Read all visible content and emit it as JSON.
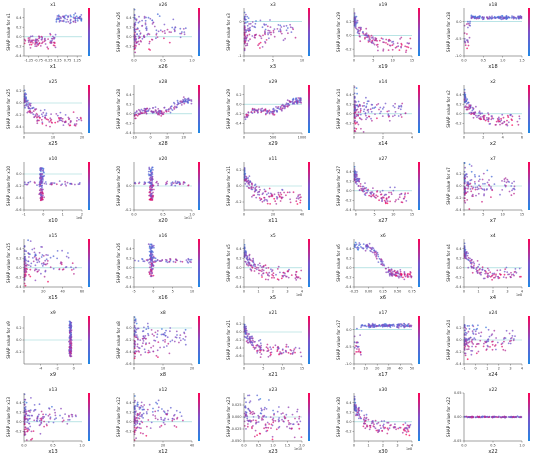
{
  "figure": {
    "rows": 6,
    "cols": 5,
    "ylabel_prefix": "SHAP value for",
    "colors": {
      "low": "#1e88e5",
      "mid": "#7c52c8",
      "high": "#ff0052",
      "baseline": "#8fd3d6",
      "axis": "#444444"
    }
  },
  "chart_data": [
    {
      "type": "scatter",
      "title": "x1",
      "xlabel": "x1",
      "ylabel": "SHAP value for x1",
      "xlim": [
        -1.5,
        1.5
      ],
      "ylim": [
        -0.4,
        0.6
      ],
      "xticks": [
        "-1.25",
        "-0.75",
        "-0.25",
        "0.25",
        "0.75",
        "1.25"
      ],
      "yticks": [
        "-0.4",
        "-0.2",
        "0.0",
        "0.2",
        "0.4"
      ],
      "pattern": "step"
    },
    {
      "type": "scatter",
      "title": "x26",
      "xlabel": "x26",
      "ylabel": "SHAP value for x26",
      "xlim": [
        0,
        1
      ],
      "ylim": [
        -0.4,
        0.6
      ],
      "xticks": [
        "0.0",
        "0.5",
        "1.0"
      ],
      "yticks": [
        "-0.2",
        "0.0",
        "0.2",
        "0.4"
      ],
      "pattern": "leftcluster"
    },
    {
      "type": "scatter",
      "title": "x3",
      "xlabel": "x3",
      "ylabel": "SHAP value for x3",
      "xlim": [
        0,
        10
      ],
      "ylim": [
        -1,
        0.4
      ],
      "xticks": [
        "0",
        "5",
        "10"
      ],
      "yticks": [
        "-1",
        "0"
      ],
      "pattern": "leftcluster"
    },
    {
      "type": "scatter",
      "title": "x19",
      "xlabel": "x19",
      "ylabel": "SHAP value for x19",
      "xlim": [
        0,
        15
      ],
      "ylim": [
        -0.3,
        0.4
      ],
      "xticks": [
        "0",
        "5",
        "10",
        "15"
      ],
      "yticks": [
        "-0.2",
        "0.0",
        "0.2"
      ],
      "pattern": "decay"
    },
    {
      "type": "scatter",
      "title": "x18",
      "xlabel": "x18",
      "ylabel": "SHAP value for x18",
      "xlim": [
        0,
        1.5
      ],
      "ylim": [
        -1,
        0.4
      ],
      "xticks": [
        "0.0",
        "0.5",
        "1.0",
        "1.5"
      ],
      "yticks": [
        "-1.0",
        "-0.5",
        "0.0"
      ],
      "pattern": "rise"
    },
    {
      "type": "scatter",
      "title": "x25",
      "xlabel": "x25",
      "ylabel": "SHAP value for x25",
      "xlim": [
        0,
        20
      ],
      "ylim": [
        -0.5,
        0.3
      ],
      "xticks": [
        "0",
        "10",
        "20"
      ],
      "yticks": [
        "-0.4",
        "-0.2",
        "0.0",
        "0.2"
      ],
      "pattern": "decay"
    },
    {
      "type": "scatter",
      "title": "x28",
      "xlabel": "x28",
      "ylabel": "SHAP value for x28",
      "xlim": [
        -10,
        25
      ],
      "ylim": [
        -0.4,
        0.6
      ],
      "xticks": [
        "-10",
        "0",
        "10",
        "20"
      ],
      "yticks": [
        "-0.4",
        "-0.2",
        "0.0",
        "0.2",
        "0.4"
      ],
      "pattern": "band"
    },
    {
      "type": "scatter",
      "title": "x29",
      "xlabel": "x29",
      "ylabel": "SHAP value for x29",
      "xlim": [
        0,
        1000
      ],
      "ylim": [
        -0.6,
        0.4
      ],
      "xticks": [
        "0",
        "500",
        "1000"
      ],
      "yticks": [
        "-0.4",
        "-0.2",
        "0.0",
        "0.2"
      ],
      "pattern": "band"
    },
    {
      "type": "scatter",
      "title": "x14",
      "xlabel": "x14",
      "ylabel": "SHAP value for x14",
      "xlim": [
        0,
        4
      ],
      "ylim": [
        -0.4,
        0.6
      ],
      "xticks": [
        "0",
        "2",
        "4"
      ],
      "yticks": [
        "-0.2",
        "0.0",
        "0.2",
        "0.4"
      ],
      "pattern": "leftcluster"
    },
    {
      "type": "scatter",
      "title": "x2",
      "xlabel": "x2",
      "ylabel": "SHAP value for x2",
      "xlim": [
        0,
        6
      ],
      "ylim": [
        -0.4,
        0.6
      ],
      "xticks": [
        "0",
        "2",
        "4",
        "6"
      ],
      "yticks": [
        "-0.2",
        "0.0",
        "0.2",
        "0.4"
      ],
      "pattern": "decay"
    },
    {
      "type": "scatter",
      "title": "x10",
      "xlabel": "x10",
      "ylabel": "SHAP value for x10",
      "xlim": [
        -1,
        2
      ],
      "ylim": [
        -0.6,
        0.2
      ],
      "xticks": [
        "-1",
        "0",
        "1",
        "2"
      ],
      "yticks": [
        "-0.6",
        "-0.4",
        "-0.2",
        "0.0"
      ],
      "pattern": "spike",
      "scale_label": "1e8"
    },
    {
      "type": "scatter",
      "title": "x20",
      "xlabel": "x20",
      "ylabel": "SHAP value for x20",
      "xlim": [
        0,
        1
      ],
      "ylim": [
        -0.2,
        0.2
      ],
      "xticks": [
        "0.0",
        "0.5",
        "1.0"
      ],
      "yticks": [
        "-0.2",
        "0.0"
      ],
      "pattern": "spike",
      "scale_label": "1e11"
    },
    {
      "type": "scatter",
      "title": "x11",
      "xlabel": "x11",
      "ylabel": "SHAP value for x11",
      "xlim": [
        0,
        40
      ],
      "ylim": [
        -0.3,
        0.3
      ],
      "xticks": [
        "0",
        "20",
        "40"
      ],
      "yticks": [
        "-0.2",
        "0.0",
        "0.2"
      ],
      "pattern": "decay"
    },
    {
      "type": "scatter",
      "title": "x27",
      "xlabel": "x27",
      "ylabel": "SHAP value for x27",
      "xlim": [
        -0.5,
        15
      ],
      "ylim": [
        -0.4,
        0.6
      ],
      "xticks": [
        "0",
        "5",
        "10",
        "15"
      ],
      "yticks": [
        "-0.4",
        "-0.2",
        "0.0",
        "0.2",
        "0.4"
      ],
      "pattern": "decay"
    },
    {
      "type": "scatter",
      "title": "x7",
      "xlabel": "x7",
      "ylabel": "SHAP value for x7",
      "xlim": [
        0,
        15
      ],
      "ylim": [
        -0.4,
        0.4
      ],
      "xticks": [
        "0",
        "5",
        "10",
        "15"
      ],
      "yticks": [
        "-0.4",
        "-0.2",
        "0.0",
        "0.2"
      ],
      "pattern": "leftcluster"
    },
    {
      "type": "scatter",
      "title": "x15",
      "xlabel": "x15",
      "ylabel": "SHAP value for x15",
      "xlim": [
        0,
        60
      ],
      "ylim": [
        -0.4,
        0.6
      ],
      "xticks": [
        "0",
        "20",
        "40",
        "60"
      ],
      "yticks": [
        "-0.4",
        "-0.2",
        "0.0",
        "0.2",
        "0.4"
      ],
      "pattern": "leftcluster"
    },
    {
      "type": "scatter",
      "title": "x16",
      "xlabel": "x16",
      "ylabel": "SHAP value for x16",
      "xlim": [
        -5,
        10
      ],
      "ylim": [
        -0.4,
        0.6
      ],
      "xticks": [
        "-5",
        "0",
        "5",
        "10"
      ],
      "yticks": [
        "-0.4",
        "-0.2",
        "0.0",
        "0.2",
        "0.4"
      ],
      "pattern": "spike"
    },
    {
      "type": "scatter",
      "title": "x5",
      "xlabel": "x5",
      "ylabel": "SHAP value for x5",
      "xlim": [
        0,
        4
      ],
      "ylim": [
        -0.4,
        0.6
      ],
      "xticks": [
        "0",
        "1",
        "2",
        "3",
        "4"
      ],
      "yticks": [
        "-0.4",
        "-0.2",
        "0.0",
        "0.2",
        "0.4"
      ],
      "pattern": "decay",
      "scale_label": "1e8"
    },
    {
      "type": "scatter",
      "title": "x6",
      "xlabel": "x6",
      "ylabel": "SHAP value for x6",
      "xlim": [
        -0.25,
        0.75
      ],
      "ylim": [
        -0.4,
        0.6
      ],
      "xticks": [
        "-0.25",
        "0.00",
        "0.25",
        "0.50",
        "0.75"
      ],
      "yticks": [
        "-0.4",
        "-0.2",
        "0.0",
        "0.2",
        "0.4"
      ],
      "pattern": "sigmoid"
    },
    {
      "type": "scatter",
      "title": "x4",
      "xlabel": "x4",
      "ylabel": "SHAP value for x4",
      "xlim": [
        0,
        4
      ],
      "ylim": [
        -0.4,
        0.6
      ],
      "xticks": [
        "0",
        "1",
        "2",
        "3",
        "4"
      ],
      "yticks": [
        "-0.4",
        "-0.2",
        "0.0",
        "0.2",
        "0.4"
      ],
      "pattern": "decay",
      "scale_label": "1e8"
    },
    {
      "type": "scatter",
      "title": "x9",
      "xlabel": "x9",
      "ylabel": "SHAP value for x9",
      "xlim": [
        -6,
        1
      ],
      "ylim": [
        -0.4,
        0.4
      ],
      "xticks": [
        "-4",
        "-2",
        "0"
      ],
      "yticks": [
        "-0.2",
        "0.0",
        "0.2"
      ],
      "pattern": "rightspike"
    },
    {
      "type": "scatter",
      "title": "x8",
      "xlabel": "x8",
      "ylabel": "SHAP value for x8",
      "xlim": [
        0,
        20
      ],
      "ylim": [
        -0.6,
        0.2
      ],
      "xticks": [
        "0",
        "10",
        "20"
      ],
      "yticks": [
        "-0.6",
        "-0.4",
        "-0.2",
        "0.0"
      ],
      "pattern": "leftcluster"
    },
    {
      "type": "scatter",
      "title": "x21",
      "xlabel": "x21",
      "ylabel": "SHAP value for x21",
      "xlim": [
        0,
        15
      ],
      "ylim": [
        -0.8,
        0.4
      ],
      "xticks": [
        "0",
        "5",
        "10",
        "15"
      ],
      "yticks": [
        "-0.6",
        "-0.4",
        "-0.2",
        "0.0",
        "0.2"
      ],
      "pattern": "decay"
    },
    {
      "type": "scatter",
      "title": "x17",
      "xlabel": "x17",
      "ylabel": "SHAP value for x17",
      "xlim": [
        0,
        50
      ],
      "ylim": [
        -1,
        0.4
      ],
      "xticks": [
        "0",
        "10",
        "20",
        "30",
        "40",
        "50"
      ],
      "yticks": [
        "-1.0",
        "-0.5",
        "0.0"
      ],
      "pattern": "rise"
    },
    {
      "type": "scatter",
      "title": "x24",
      "xlabel": "x24",
      "ylabel": "SHAP value for x24",
      "xlim": [
        -1,
        4
      ],
      "ylim": [
        -0.4,
        0.4
      ],
      "xticks": [
        "-1",
        "0",
        "1",
        "2",
        "3",
        "4"
      ],
      "yticks": [
        "-0.4",
        "-0.2",
        "0.0",
        "0.2"
      ],
      "pattern": "leftcluster"
    },
    {
      "type": "scatter",
      "title": "x13",
      "xlabel": "x13",
      "ylabel": "SHAP value for x13",
      "xlim": [
        0,
        1
      ],
      "ylim": [
        -0.4,
        0.6
      ],
      "xticks": [
        "0.0",
        "0.5",
        "1.0"
      ],
      "yticks": [
        "-0.2",
        "0.0",
        "0.2",
        "0.4"
      ],
      "pattern": "leftcluster"
    },
    {
      "type": "scatter",
      "title": "x12",
      "xlabel": "x12",
      "ylabel": "SHAP value for x12",
      "xlim": [
        0,
        40
      ],
      "ylim": [
        -0.4,
        0.6
      ],
      "xticks": [
        "0",
        "20",
        "40"
      ],
      "yticks": [
        "-0.2",
        "0.0",
        "0.2",
        "0.4"
      ],
      "pattern": "leftcluster"
    },
    {
      "type": "scatter",
      "title": "x23",
      "xlabel": "x23",
      "ylabel": "SHAP value for x23",
      "xlim": [
        0,
        2
      ],
      "ylim": [
        -0.05,
        0.05
      ],
      "xticks": [
        "0.0",
        "0.5",
        "1.0",
        "1.5",
        "2.0"
      ],
      "yticks": [
        "-0.050",
        "-0.025",
        "0.000",
        "0.025"
      ],
      "pattern": "cloud",
      "scale_label": "1e10"
    },
    {
      "type": "scatter",
      "title": "x30",
      "xlabel": "x30",
      "ylabel": "SHAP value for x30",
      "xlim": [
        0,
        4
      ],
      "ylim": [
        -0.4,
        0.6
      ],
      "xticks": [
        "0",
        "1",
        "2",
        "3",
        "4"
      ],
      "yticks": [
        "-0.2",
        "0.0",
        "0.2",
        "0.4"
      ],
      "pattern": "decay",
      "scale_label": "1e8"
    },
    {
      "type": "scatter",
      "title": "x22",
      "xlabel": "x22",
      "ylabel": "SHAP value for x22",
      "xlim": [
        0,
        1
      ],
      "ylim": [
        -0.05,
        0.05
      ],
      "xticks": [
        "0.0",
        "0.5",
        "1.0"
      ],
      "yticks": [
        "-0.05",
        "0.00",
        "0.05"
      ],
      "pattern": "flat"
    }
  ]
}
